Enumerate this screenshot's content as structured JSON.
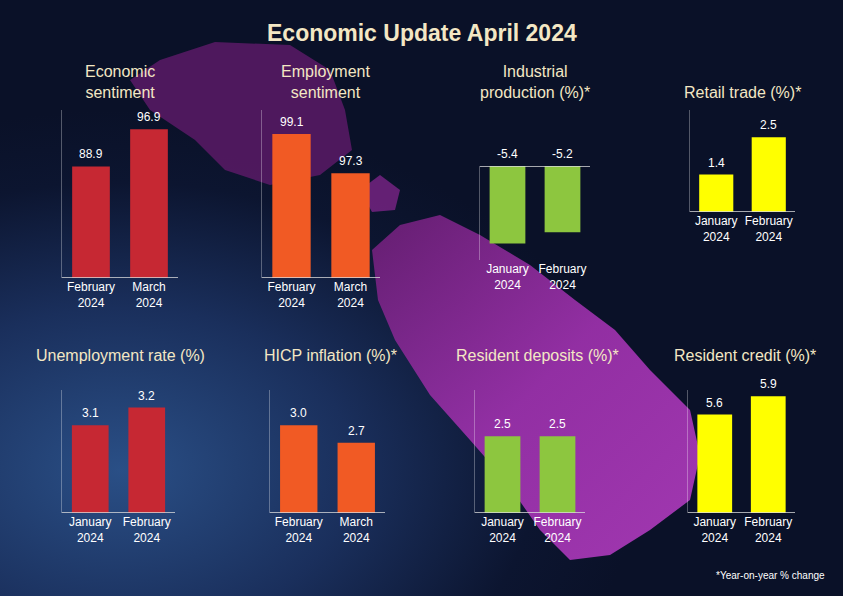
{
  "title": "Economic Update April 2024",
  "note": "*Year-on-year % change",
  "chart_data": [
    {
      "type": "bar",
      "title": "Economic sentiment",
      "categories": [
        "February 2024",
        "March 2024"
      ],
      "values": [
        88.9,
        96.9
      ],
      "color": "#c62833",
      "ylim": [
        65,
        101
      ],
      "data_labels": true,
      "tick_labels": "x"
    },
    {
      "type": "bar",
      "title": "Employment sentiment",
      "categories": [
        "February 2024",
        "March 2024"
      ],
      "values": [
        99.1,
        97.3
      ],
      "color": "#f15a24",
      "ylim": [
        92.5,
        100.2
      ],
      "data_labels": true,
      "tick_labels": "x"
    },
    {
      "type": "bar",
      "title": "Industrial production (%)*",
      "categories": [
        "January 2024",
        "February 2024"
      ],
      "values": [
        -5.4,
        -5.2
      ],
      "color": "#8dc63f",
      "ylim": [
        -5.7,
        -4.0
      ],
      "data_labels": true,
      "tick_labels": "x"
    },
    {
      "type": "bar",
      "title": "Retail trade (%)*",
      "categories": [
        "January 2024",
        "February 2024"
      ],
      "values": [
        1.4,
        2.5
      ],
      "color": "#ffff00",
      "ylim": [
        0.3,
        3.3
      ],
      "data_labels": true,
      "tick_labels": "x"
    },
    {
      "type": "bar",
      "title": "Unemployment rate (%)",
      "categories": [
        "January 2024",
        "February 2024"
      ],
      "values": [
        3.1,
        3.2
      ],
      "color": "#c62833",
      "ylim": [
        2.6,
        3.3
      ],
      "data_labels": true,
      "tick_labels": "x"
    },
    {
      "type": "bar",
      "title": "HICP inflation (%)*",
      "categories": [
        "February 2024",
        "March 2024"
      ],
      "values": [
        3.0,
        2.7
      ],
      "value_labels": [
        "3.0",
        "2.7"
      ],
      "color": "#f15a24",
      "ylim": [
        1.5,
        3.6
      ],
      "data_labels": true,
      "tick_labels": "x"
    },
    {
      "type": "bar",
      "title": "Resident deposits (%)*",
      "categories": [
        "January 2024",
        "February 2024"
      ],
      "values": [
        2.5,
        2.5
      ],
      "color": "#8dc63f",
      "ylim": [
        0,
        4
      ],
      "data_labels": true,
      "tick_labels": "x"
    },
    {
      "type": "bar",
      "title": "Resident credit (%)*",
      "categories": [
        "January 2024",
        "February 2024"
      ],
      "values": [
        5.6,
        5.9
      ],
      "color": "#ffff00",
      "ylim": [
        4,
        6
      ],
      "data_labels": true,
      "tick_labels": "x"
    }
  ]
}
